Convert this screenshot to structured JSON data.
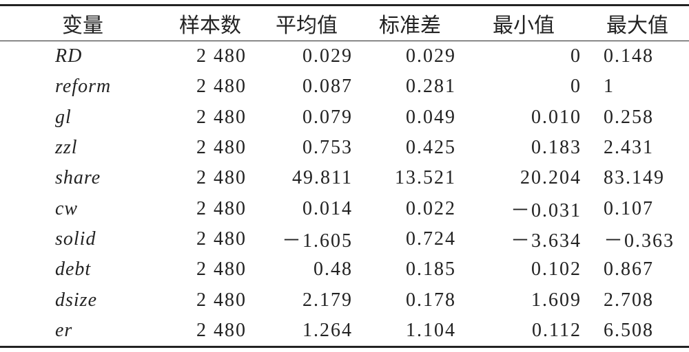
{
  "table": {
    "header": [
      "变量",
      "样本数",
      "平均值",
      "标准差",
      "最小值",
      "最大值"
    ],
    "rows": [
      [
        "RD",
        "2 480",
        "0.029",
        "0.029",
        "0",
        "0.148"
      ],
      [
        "reform",
        "2 480",
        "0.087",
        "0.281",
        "0",
        "1"
      ],
      [
        "gl",
        "2 480",
        "0.079",
        "0.049",
        "0.010",
        "0.258"
      ],
      [
        "zzl",
        "2 480",
        "0.753",
        "0.425",
        "0.183",
        "2.431"
      ],
      [
        "share",
        "2 480",
        "49.811",
        "13.521",
        "20.204",
        "83.149"
      ],
      [
        "cw",
        "2 480",
        "0.014",
        "0.022",
        "－0.031",
        "0.107"
      ],
      [
        "solid",
        "2 480",
        "－1.605",
        "0.724",
        "－3.634",
        "－0.363"
      ],
      [
        "debt",
        "2 480",
        "0.48",
        "0.185",
        "0.102",
        "0.867"
      ],
      [
        "dsize",
        "2 480",
        "2.179",
        "0.178",
        "1.609",
        "2.708"
      ],
      [
        "er",
        "2 480",
        "1.264",
        "1.104",
        "0.112",
        "6.508"
      ]
    ]
  }
}
